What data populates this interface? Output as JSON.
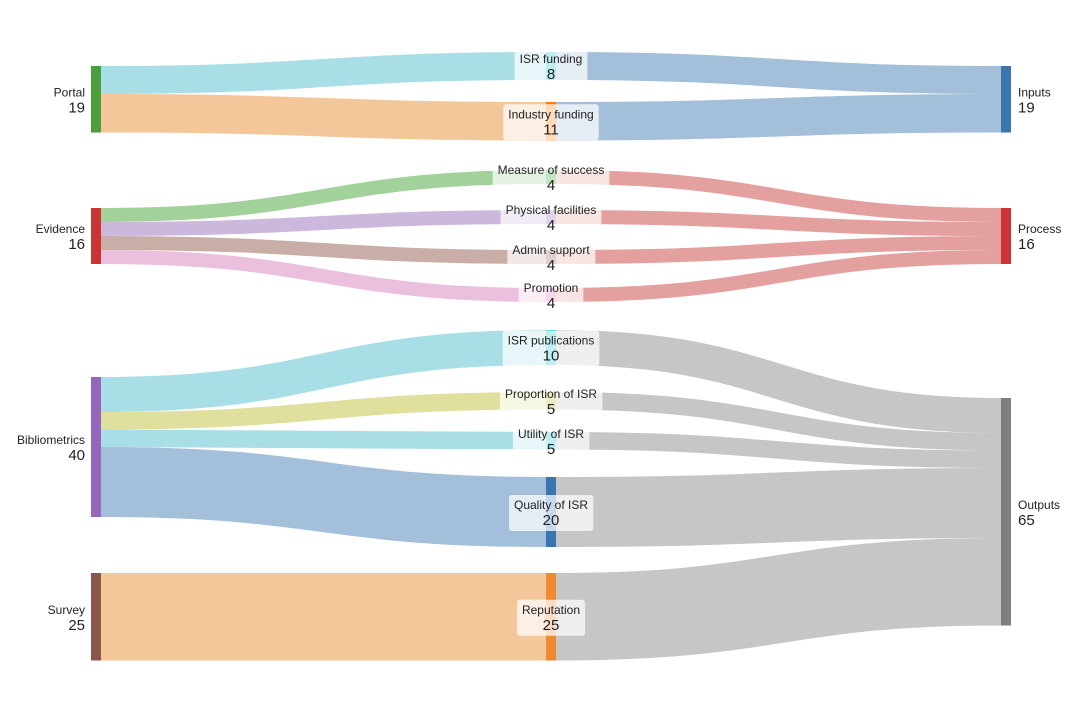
{
  "chart_data": {
    "type": "sankey",
    "title": "",
    "nodes": [
      {
        "id": "portal",
        "name": "Portal",
        "value": 19,
        "color": "#4a9e3c"
      },
      {
        "id": "evidence",
        "name": "Evidence",
        "value": 16,
        "color": "#cc3333"
      },
      {
        "id": "bibliometrics",
        "name": "Bibliometrics",
        "value": 40,
        "color": "#9467bd"
      },
      {
        "id": "survey",
        "name": "Survey",
        "value": 25,
        "color": "#8c564b"
      },
      {
        "id": "isr_funding",
        "name": "ISR funding",
        "value": 8,
        "color": "#17becf"
      },
      {
        "id": "industry_funding",
        "name": "Industry funding",
        "value": 11,
        "color": "#ff7f0e"
      },
      {
        "id": "measure_of_success",
        "name": "Measure of success",
        "value": 4,
        "color": "#2ca02c"
      },
      {
        "id": "physical_facilities",
        "name": "Physical facilities",
        "value": 4,
        "color": "#9467bd"
      },
      {
        "id": "admin_support",
        "name": "Admin support",
        "value": 4,
        "color": "#8c564b"
      },
      {
        "id": "promotion",
        "name": "Promotion",
        "value": 4,
        "color": "#e377c2"
      },
      {
        "id": "isr_publications",
        "name": "ISR publications",
        "value": 10,
        "color": "#17becf"
      },
      {
        "id": "proportion_of_isr",
        "name": "Proportion of ISR",
        "value": 5,
        "color": "#bcbd22"
      },
      {
        "id": "utility_of_isr",
        "name": "Utility of ISR",
        "value": 5,
        "color": "#17becf"
      },
      {
        "id": "quality_of_isr",
        "name": "Quality of ISR",
        "value": 20,
        "color": "#3a75b0"
      },
      {
        "id": "reputation",
        "name": "Reputation",
        "value": 25,
        "color": "#f08a30"
      },
      {
        "id": "inputs",
        "name": "Inputs",
        "value": 19,
        "color": "#3a75b0"
      },
      {
        "id": "process",
        "name": "Process",
        "value": 16,
        "color": "#cc3333"
      },
      {
        "id": "outputs",
        "name": "Outputs",
        "value": 65,
        "color": "#7f7f7f"
      }
    ],
    "links": [
      {
        "source": "portal",
        "target": "isr_funding",
        "value": 8,
        "color": "#a8dfe6"
      },
      {
        "source": "portal",
        "target": "industry_funding",
        "value": 11,
        "color": "#f3c79a"
      },
      {
        "source": "evidence",
        "target": "measure_of_success",
        "value": 4,
        "color": "#a3d19b"
      },
      {
        "source": "evidence",
        "target": "physical_facilities",
        "value": 4,
        "color": "#cdb8dd"
      },
      {
        "source": "evidence",
        "target": "admin_support",
        "value": 4,
        "color": "#c9ada7"
      },
      {
        "source": "evidence",
        "target": "promotion",
        "value": 4,
        "color": "#ebc0df"
      },
      {
        "source": "bibliometrics",
        "target": "isr_publications",
        "value": 10,
        "color": "#a8dfe6"
      },
      {
        "source": "bibliometrics",
        "target": "proportion_of_isr",
        "value": 5,
        "color": "#dfe09e"
      },
      {
        "source": "bibliometrics",
        "target": "utility_of_isr",
        "value": 5,
        "color": "#a8dfe6"
      },
      {
        "source": "bibliometrics",
        "target": "quality_of_isr",
        "value": 20,
        "color": "#a3bfd9"
      },
      {
        "source": "survey",
        "target": "reputation",
        "value": 25,
        "color": "#f3c79a"
      },
      {
        "source": "isr_funding",
        "target": "inputs",
        "value": 8,
        "color": "#a3bfd9"
      },
      {
        "source": "industry_funding",
        "target": "inputs",
        "value": 11,
        "color": "#a3bfd9"
      },
      {
        "source": "measure_of_success",
        "target": "process",
        "value": 4,
        "color": "#e3a09e"
      },
      {
        "source": "physical_facilities",
        "target": "process",
        "value": 4,
        "color": "#e3a09e"
      },
      {
        "source": "admin_support",
        "target": "process",
        "value": 4,
        "color": "#e3a09e"
      },
      {
        "source": "promotion",
        "target": "process",
        "value": 4,
        "color": "#e3a09e"
      },
      {
        "source": "isr_publications",
        "target": "outputs",
        "value": 10,
        "color": "#c6c6c6"
      },
      {
        "source": "proportion_of_isr",
        "target": "outputs",
        "value": 5,
        "color": "#c6c6c6"
      },
      {
        "source": "utility_of_isr",
        "target": "outputs",
        "value": 5,
        "color": "#c6c6c6"
      },
      {
        "source": "quality_of_isr",
        "target": "outputs",
        "value": 20,
        "color": "#c6c6c6"
      },
      {
        "source": "reputation",
        "target": "outputs",
        "value": 25,
        "color": "#c6c6c6"
      }
    ]
  }
}
